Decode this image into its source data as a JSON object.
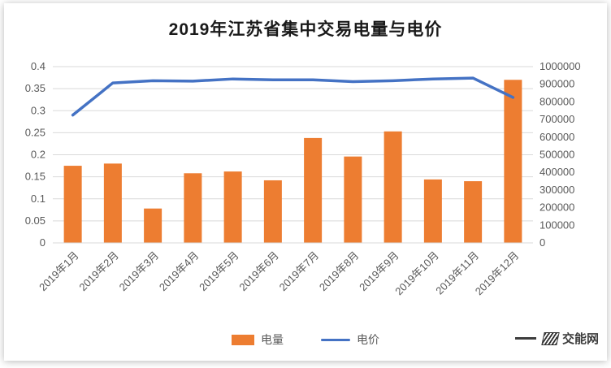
{
  "title": "2019年江苏省集中交易电量与电价",
  "watermark": "交能网",
  "legend": [
    {
      "label": "电量",
      "color": "#ED7D31",
      "type": "bar"
    },
    {
      "label": "电价",
      "color": "#4472C4",
      "type": "line"
    }
  ],
  "colors": {
    "bar": "#ED7D31",
    "line": "#4472C4",
    "grid": "#D9D9D9",
    "axis_text": "#595959",
    "title_text": "#1A1A1A"
  },
  "chart_data": {
    "type": "bar+line combo",
    "title": "2019年江苏省集中交易电量与电价",
    "categories": [
      "2019年1月",
      "2019年2月",
      "2019年3月",
      "2019年4月",
      "2019年5月",
      "2019年6月",
      "2019年7月",
      "2019年8月",
      "2019年9月",
      "2019年10月",
      "2019年11月",
      "2019年12月"
    ],
    "series": [
      {
        "name": "电量",
        "type": "bar",
        "axis": "right",
        "color": "#ED7D31",
        "values": [
          437500,
          450000,
          195000,
          395000,
          405000,
          355000,
          595000,
          490000,
          632500,
          360000,
          350000,
          925000
        ]
      },
      {
        "name": "电价",
        "type": "line",
        "axis": "left",
        "color": "#4472C4",
        "values": [
          0.29,
          0.363,
          0.368,
          0.367,
          0.372,
          0.37,
          0.37,
          0.366,
          0.368,
          0.372,
          0.374,
          0.33
        ]
      }
    ],
    "left_axis": {
      "min": 0,
      "max": 0.4,
      "step": 0.05,
      "ticks": [
        "0",
        "0.05",
        "0.1",
        "0.15",
        "0.2",
        "0.25",
        "0.3",
        "0.35",
        "0.4"
      ]
    },
    "right_axis": {
      "min": 0,
      "max": 1000000,
      "step": 100000,
      "ticks": [
        "0",
        "100000",
        "200000",
        "300000",
        "400000",
        "500000",
        "600000",
        "700000",
        "800000",
        "900000",
        "1000000"
      ]
    },
    "grid": true,
    "legend_position": "bottom"
  }
}
